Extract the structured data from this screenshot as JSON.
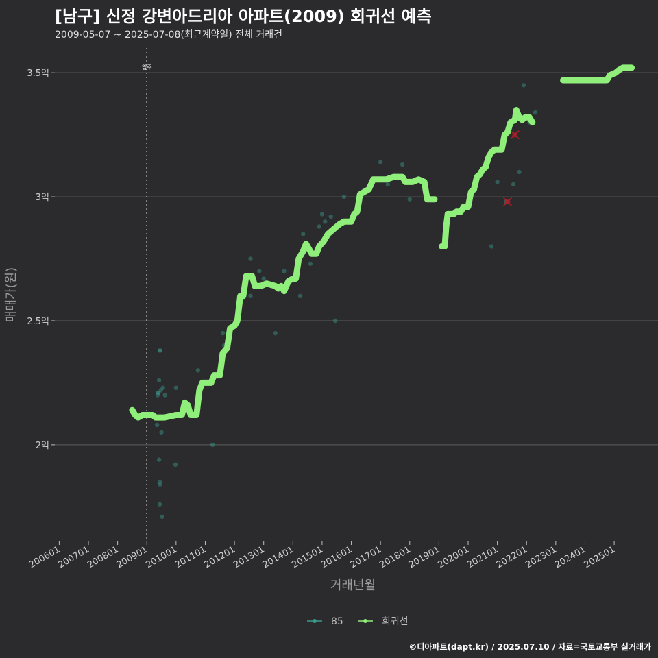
{
  "header": {
    "title": "[남구] 신정 강변아드리아 아파트(2009) 회귀선 예측",
    "subtitle": "2009-05-07 ~ 2025-07-08(최근계약일) 전체 거래건"
  },
  "footer": {
    "credit": "©디아파트(dapt.kr) / 2025.07.10 / 자료=국토교통부 실거래가"
  },
  "colors": {
    "background": "#2b2b2d",
    "grid": "#5e5e5e",
    "scatter": "#3a9a8c",
    "regression": "#90ee7a",
    "outlier": "#b41e2a",
    "vline": "#d0d0d0"
  },
  "chart_data": {
    "type": "scatter",
    "title": "[남구] 신정 강변아드리아 아파트(2009) 회귀선 예측",
    "xlabel": "거래년월",
    "ylabel": "매매가(원)",
    "xlim": [
      2005.85,
      2026.5
    ],
    "ylim": [
      1.61,
      3.6
    ],
    "x_ticks": [
      {
        "label": "200601",
        "value": 2006.0
      },
      {
        "label": "200701",
        "value": 2007.0
      },
      {
        "label": "200801",
        "value": 2008.0
      },
      {
        "label": "200901",
        "value": 2009.0
      },
      {
        "label": "201001",
        "value": 2010.0
      },
      {
        "label": "201101",
        "value": 2011.0
      },
      {
        "label": "201201",
        "value": 2012.0
      },
      {
        "label": "201301",
        "value": 2013.0
      },
      {
        "label": "201401",
        "value": 2014.0
      },
      {
        "label": "201501",
        "value": 2015.0
      },
      {
        "label": "201601",
        "value": 2016.0
      },
      {
        "label": "201701",
        "value": 2017.0
      },
      {
        "label": "201801",
        "value": 2018.0
      },
      {
        "label": "201901",
        "value": 2019.0
      },
      {
        "label": "202001",
        "value": 2020.0
      },
      {
        "label": "202101",
        "value": 2021.0
      },
      {
        "label": "202201",
        "value": 2022.0
      },
      {
        "label": "202301",
        "value": 2023.0
      },
      {
        "label": "202401",
        "value": 2024.0
      },
      {
        "label": "202501",
        "value": 2025.0
      }
    ],
    "y_ticks": [
      {
        "label": "2억",
        "value": 2.0
      },
      {
        "label": "2.5억",
        "value": 2.5
      },
      {
        "label": "3억",
        "value": 3.0
      },
      {
        "label": "3.5억",
        "value": 3.5
      }
    ],
    "vline": {
      "x": 2009.0,
      "label": "입주"
    },
    "legend": [
      {
        "label": "85",
        "color": "#3a9a8c"
      },
      {
        "label": "회귀선",
        "color": "#90ee7a"
      }
    ],
    "scatter_points": [
      [
        2009.37,
        2.2
      ],
      [
        2009.4,
        2.21
      ],
      [
        2009.42,
        2.26
      ],
      [
        2009.44,
        2.38
      ],
      [
        2009.46,
        2.38
      ],
      [
        2009.48,
        2.22
      ],
      [
        2009.5,
        2.05
      ],
      [
        2009.55,
        2.23
      ],
      [
        2009.62,
        2.2
      ],
      [
        2009.35,
        2.08
      ],
      [
        2009.4,
        2.11
      ],
      [
        2009.42,
        1.94
      ],
      [
        2009.44,
        1.85
      ],
      [
        2009.45,
        1.84
      ],
      [
        2009.44,
        1.76
      ],
      [
        2009.52,
        1.71
      ],
      [
        2009.38,
        2.21
      ],
      [
        2010.0,
        2.23
      ],
      [
        2009.98,
        1.92
      ],
      [
        2010.52,
        2.12
      ],
      [
        2010.75,
        2.3
      ],
      [
        2011.25,
        2.0
      ],
      [
        2011.6,
        2.45
      ],
      [
        2011.65,
        2.4
      ],
      [
        2012.55,
        2.75
      ],
      [
        2012.55,
        2.6
      ],
      [
        2012.85,
        2.7
      ],
      [
        2013.0,
        2.67
      ],
      [
        2013.4,
        2.45
      ],
      [
        2013.6,
        2.63
      ],
      [
        2013.7,
        2.7
      ],
      [
        2014.25,
        2.6
      ],
      [
        2014.35,
        2.85
      ],
      [
        2014.6,
        2.73
      ],
      [
        2014.9,
        2.88
      ],
      [
        2015.0,
        2.93
      ],
      [
        2015.1,
        2.9
      ],
      [
        2015.3,
        2.92
      ],
      [
        2015.45,
        2.5
      ],
      [
        2015.75,
        3.0
      ],
      [
        2016.0,
        2.9
      ],
      [
        2017.0,
        3.14
      ],
      [
        2017.25,
        3.05
      ],
      [
        2017.75,
        3.13
      ],
      [
        2018.0,
        2.99
      ],
      [
        2020.8,
        2.8
      ],
      [
        2021.0,
        3.06
      ],
      [
        2021.3,
        2.98
      ],
      [
        2021.55,
        3.05
      ],
      [
        2021.75,
        3.1
      ],
      [
        2021.9,
        3.45
      ],
      [
        2022.1,
        3.3
      ],
      [
        2022.3,
        3.34
      ]
    ],
    "outliers": [
      [
        2021.6,
        3.25
      ],
      [
        2021.35,
        2.98
      ]
    ],
    "regression_segments": [
      [
        [
          2008.5,
          2.14
        ],
        [
          2008.6,
          2.12
        ],
        [
          2008.7,
          2.11
        ],
        [
          2008.85,
          2.12
        ],
        [
          2009.0,
          2.12
        ],
        [
          2009.2,
          2.12
        ],
        [
          2009.3,
          2.11
        ],
        [
          2009.6,
          2.11
        ],
        [
          2010.0,
          2.12
        ],
        [
          2010.2,
          2.12
        ],
        [
          2010.3,
          2.17
        ],
        [
          2010.4,
          2.16
        ],
        [
          2010.5,
          2.12
        ],
        [
          2010.7,
          2.12
        ],
        [
          2010.8,
          2.22
        ],
        [
          2010.9,
          2.25
        ],
        [
          2011.2,
          2.25
        ],
        [
          2011.3,
          2.28
        ],
        [
          2011.5,
          2.28
        ],
        [
          2011.6,
          2.37
        ],
        [
          2011.75,
          2.39
        ],
        [
          2011.85,
          2.47
        ],
        [
          2012.0,
          2.48
        ],
        [
          2012.1,
          2.5
        ],
        [
          2012.2,
          2.6
        ],
        [
          2012.3,
          2.6
        ],
        [
          2012.4,
          2.68
        ],
        [
          2012.6,
          2.68
        ],
        [
          2012.7,
          2.64
        ],
        [
          2012.9,
          2.64
        ],
        [
          2013.1,
          2.65
        ],
        [
          2013.4,
          2.64
        ],
        [
          2013.5,
          2.63
        ],
        [
          2013.6,
          2.64
        ],
        [
          2013.7,
          2.62
        ],
        [
          2013.85,
          2.66
        ],
        [
          2014.0,
          2.67
        ],
        [
          2014.1,
          2.67
        ],
        [
          2014.2,
          2.75
        ],
        [
          2014.35,
          2.78
        ],
        [
          2014.45,
          2.81
        ],
        [
          2014.55,
          2.79
        ],
        [
          2014.65,
          2.77
        ],
        [
          2014.8,
          2.77
        ],
        [
          2014.9,
          2.8
        ],
        [
          2015.05,
          2.82
        ],
        [
          2015.2,
          2.85
        ],
        [
          2015.4,
          2.87
        ],
        [
          2015.5,
          2.88
        ],
        [
          2015.6,
          2.89
        ],
        [
          2015.75,
          2.9
        ],
        [
          2016.0,
          2.9
        ],
        [
          2016.1,
          2.93
        ],
        [
          2016.2,
          2.94
        ],
        [
          2016.3,
          3.01
        ],
        [
          2016.45,
          3.02
        ],
        [
          2016.6,
          3.03
        ],
        [
          2016.75,
          3.07
        ],
        [
          2016.95,
          3.07
        ],
        [
          2017.2,
          3.07
        ],
        [
          2017.45,
          3.08
        ],
        [
          2017.75,
          3.08
        ],
        [
          2017.85,
          3.06
        ],
        [
          2018.1,
          3.06
        ],
        [
          2018.3,
          3.07
        ],
        [
          2018.5,
          3.06
        ],
        [
          2018.6,
          2.99
        ],
        [
          2018.85,
          2.99
        ]
      ],
      [
        [
          2019.1,
          2.8
        ],
        [
          2019.2,
          2.8
        ],
        [
          2019.25,
          2.88
        ],
        [
          2019.3,
          2.93
        ],
        [
          2019.5,
          2.93
        ],
        [
          2019.6,
          2.94
        ],
        [
          2019.75,
          2.94
        ],
        [
          2019.85,
          2.96
        ],
        [
          2020.0,
          2.96
        ],
        [
          2020.1,
          3.02
        ],
        [
          2020.2,
          3.03
        ],
        [
          2020.3,
          3.08
        ],
        [
          2020.4,
          3.09
        ],
        [
          2020.5,
          3.11
        ],
        [
          2020.6,
          3.12
        ],
        [
          2020.7,
          3.16
        ],
        [
          2020.8,
          3.18
        ],
        [
          2020.9,
          3.19
        ],
        [
          2021.05,
          3.19
        ],
        [
          2021.15,
          3.19
        ],
        [
          2021.25,
          3.25
        ],
        [
          2021.35,
          3.26
        ],
        [
          2021.45,
          3.3
        ],
        [
          2021.6,
          3.31
        ],
        [
          2021.65,
          3.35
        ],
        [
          2021.75,
          3.32
        ],
        [
          2021.85,
          3.31
        ],
        [
          2021.95,
          3.32
        ],
        [
          2022.1,
          3.32
        ],
        [
          2022.2,
          3.3
        ]
      ],
      [
        [
          2023.25,
          3.47
        ],
        [
          2023.5,
          3.47
        ],
        [
          2023.9,
          3.47
        ],
        [
          2024.2,
          3.47
        ],
        [
          2024.5,
          3.47
        ],
        [
          2024.75,
          3.47
        ],
        [
          2024.85,
          3.49
        ],
        [
          2025.05,
          3.5
        ],
        [
          2025.15,
          3.51
        ],
        [
          2025.3,
          3.52
        ],
        [
          2025.6,
          3.52
        ]
      ]
    ]
  }
}
